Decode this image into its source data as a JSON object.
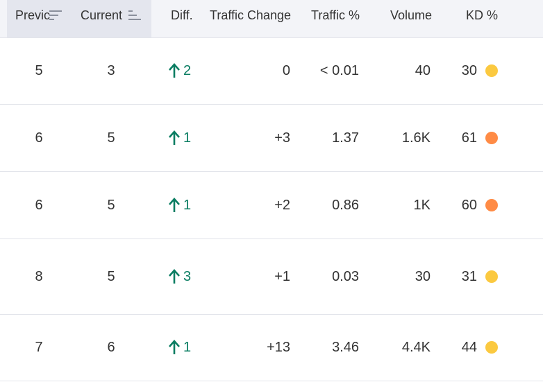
{
  "table": {
    "headers": [
      "Previc",
      "Current",
      "Diff.",
      "Traffic Change",
      "Traffic %",
      "Volume",
      "KD %"
    ],
    "rows": [
      {
        "previous": "5",
        "current": "3",
        "diff": "2",
        "traffic_change": "0",
        "traffic_percent": "< 0.01",
        "volume": "40",
        "kd": "30",
        "kd_color": "#fbc940"
      },
      {
        "previous": "6",
        "current": "5",
        "diff": "1",
        "traffic_change": "+3",
        "traffic_percent": "1.37",
        "volume": "1.6K",
        "kd": "61",
        "kd_color": "#ff8b45"
      },
      {
        "previous": "6",
        "current": "5",
        "diff": "1",
        "traffic_change": "+2",
        "traffic_percent": "0.86",
        "volume": "1K",
        "kd": "60",
        "kd_color": "#ff8b45"
      },
      {
        "previous": "8",
        "current": "5",
        "diff": "3",
        "traffic_change": "+1",
        "traffic_percent": "0.03",
        "volume": "30",
        "kd": "31",
        "kd_color": "#fbc940"
      },
      {
        "previous": "7",
        "current": "6",
        "diff": "1",
        "traffic_change": "+13",
        "traffic_percent": "3.46",
        "volume": "4.4K",
        "kd": "44",
        "kd_color": "#fbc940"
      }
    ]
  }
}
